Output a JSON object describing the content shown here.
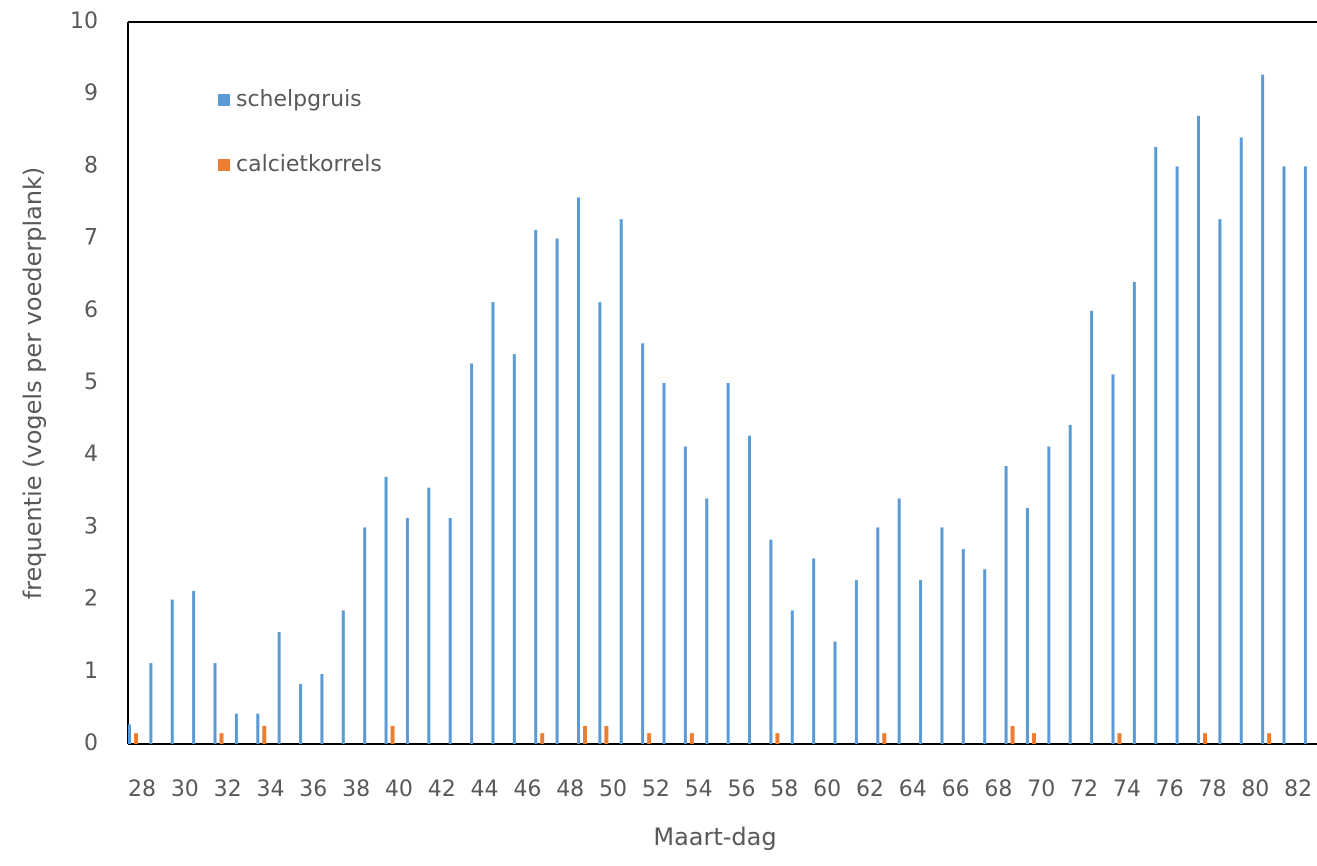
{
  "chart_data": {
    "type": "bar",
    "x_label": "Maart-dag",
    "y_label": "frequentie (vogels per voederplank)",
    "categories": [
      "28",
      null,
      "30",
      null,
      "32",
      null,
      "34",
      null,
      "36",
      null,
      "38",
      null,
      "40",
      null,
      "42",
      null,
      "44",
      null,
      "46",
      null,
      "48",
      null,
      "50",
      null,
      "52",
      null,
      "54",
      null,
      "56",
      null,
      "58",
      null,
      "60",
      null,
      "62",
      null,
      "64",
      null,
      "66",
      null,
      "68",
      null,
      "70",
      null,
      "72",
      null,
      "74",
      null,
      "76",
      null,
      "78",
      null,
      "80",
      null,
      "82",
      null
    ],
    "series": [
      {
        "name": "schelpgruis",
        "color": "#5b9bd5",
        "values": [
          0.27,
          1.12,
          2.0,
          2.12,
          1.12,
          0.42,
          0.42,
          1.55,
          0.83,
          0.97,
          1.85,
          3.0,
          3.7,
          3.13,
          3.55,
          3.13,
          5.27,
          6.12,
          5.4,
          7.12,
          7.0,
          7.57,
          6.12,
          7.27,
          5.55,
          5.0,
          4.12,
          3.4,
          5.0,
          4.27,
          2.83,
          1.85,
          2.57,
          1.42,
          2.27,
          3.0,
          3.4,
          2.27,
          3.0,
          2.7,
          2.42,
          3.85,
          3.27,
          4.12,
          4.42,
          6.0,
          5.12,
          6.4,
          8.27,
          8.0,
          8.7,
          7.27,
          8.4,
          9.27,
          8.0,
          8.0
        ]
      },
      {
        "name": "calcietkorrels",
        "color": "#ed7d31",
        "values": [
          0.15,
          0,
          0,
          0,
          0.15,
          0,
          0.25,
          0,
          0,
          0,
          0,
          0,
          0.25,
          0,
          0,
          0,
          0,
          0,
          0,
          0.15,
          0,
          0.25,
          0.25,
          0,
          0.15,
          0,
          0.15,
          0,
          0,
          0,
          0.15,
          0,
          0,
          0,
          0,
          0.15,
          0,
          0,
          0,
          0,
          0,
          0.25,
          0.15,
          0,
          0,
          0,
          0.15,
          0,
          0,
          0,
          0.15,
          0,
          0,
          0.15,
          0,
          0
        ]
      }
    ],
    "ylim": [
      0,
      10
    ],
    "yticks": [
      0,
      1,
      2,
      3,
      4,
      5,
      6,
      7,
      8,
      9,
      10
    ],
    "grid": false,
    "legend": "top-left"
  }
}
